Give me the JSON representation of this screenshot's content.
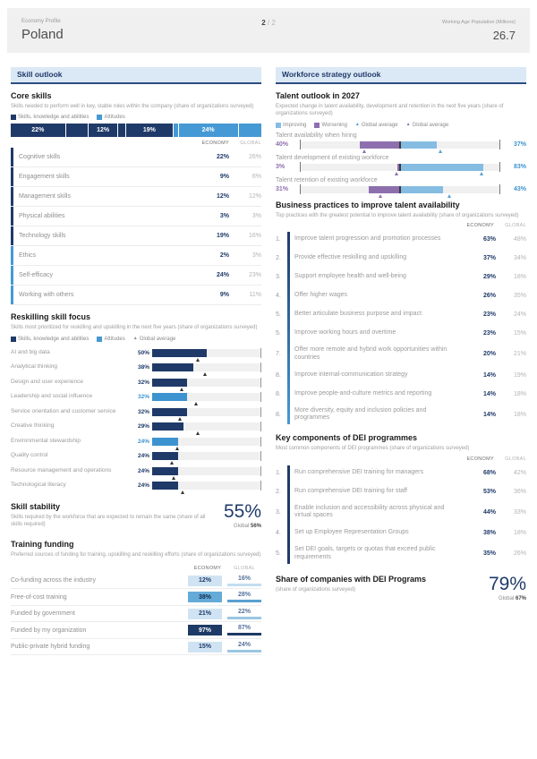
{
  "header": {
    "eyebrow": "Economy Profile",
    "title": "Poland",
    "page_current": "2",
    "page_separator": "/",
    "page_total": "2",
    "metric_label": "Working Age Population (Millions)",
    "metric_value": "26.7"
  },
  "colors": {
    "navy": "#1f3a68",
    "attitudes_blue": "#4599d4",
    "improving_blue": "#85bce2",
    "worsening_purple": "#8e6fae",
    "section_bg": "#dbe8f5"
  },
  "left": {
    "section_title": "Skill outlook",
    "core_skills": {
      "title": "Core skills",
      "subtitle": "Skills needed to perform well in key, stable roles within the company (share of organizations surveyed)",
      "legend": {
        "skills": "Skills, knowledge and abilities",
        "attitudes": "Attitudes"
      },
      "col_economy": "ECONOMY",
      "col_global": "GLOBAL",
      "stacked_bar": [
        {
          "value": 22,
          "label": "22%",
          "group": "skills"
        },
        {
          "value": 9,
          "label": "",
          "group": "skills"
        },
        {
          "value": 12,
          "label": "12%",
          "group": "skills"
        },
        {
          "value": 3,
          "label": "",
          "group": "skills"
        },
        {
          "value": 19,
          "label": "19%",
          "group": "skills"
        },
        {
          "value": 2,
          "label": "",
          "group": "attitudes"
        },
        {
          "value": 24,
          "label": "24%",
          "group": "attitudes"
        },
        {
          "value": 9,
          "label": "",
          "group": "attitudes"
        }
      ],
      "rows": [
        {
          "label": "Cognitive skills",
          "economy": "22%",
          "global": "26%",
          "group": "skills"
        },
        {
          "label": "Engagement skills",
          "economy": "9%",
          "global": "6%",
          "group": "skills"
        },
        {
          "label": "Management skills",
          "economy": "12%",
          "global": "12%",
          "group": "skills"
        },
        {
          "label": "Physical abilities",
          "economy": "3%",
          "global": "3%",
          "group": "skills"
        },
        {
          "label": "Technology skills",
          "economy": "19%",
          "global": "16%",
          "group": "skills"
        },
        {
          "label": "Ethics",
          "economy": "2%",
          "global": "3%",
          "group": "attitudes"
        },
        {
          "label": "Self-efficacy",
          "economy": "24%",
          "global": "23%",
          "group": "attitudes"
        },
        {
          "label": "Working with others",
          "economy": "9%",
          "global": "11%",
          "group": "attitudes"
        }
      ]
    },
    "reskilling": {
      "title": "Reskilling skill focus",
      "subtitle": "Skills most prioritized for reskilling and upskilling in the next five years (share of organizations surveyed)",
      "legend": {
        "skills": "Skills, knowledge and abilities",
        "attitudes": "Attitudes",
        "marker": "Global average"
      },
      "rows": [
        {
          "label": "AI and big data",
          "display": "50%",
          "value": 50,
          "group": "skills",
          "global_marker": 42
        },
        {
          "label": "Analytical thinking",
          "display": "38%",
          "value": 38,
          "group": "skills",
          "global_marker": 48
        },
        {
          "label": "Design and user experience",
          "display": "32%",
          "value": 32,
          "group": "skills",
          "global_marker": 27
        },
        {
          "label": "Leadership and social influence",
          "display": "32%",
          "value": 32,
          "group": "attitudes",
          "global_marker": 40
        },
        {
          "label": "Service orientation and customer service",
          "display": "32%",
          "value": 32,
          "group": "skills",
          "global_marker": 25
        },
        {
          "label": "Creative thinking",
          "display": "29%",
          "value": 29,
          "group": "skills",
          "global_marker": 42
        },
        {
          "label": "Environmental stewardship",
          "display": "24%",
          "value": 24,
          "group": "attitudes",
          "global_marker": 23
        },
        {
          "label": "Quality control",
          "display": "24%",
          "value": 24,
          "group": "skills",
          "global_marker": 18
        },
        {
          "label": "Resource management and operations",
          "display": "24%",
          "value": 24,
          "group": "skills",
          "global_marker": 20
        },
        {
          "label": "Technological literacy",
          "display": "24%",
          "value": 24,
          "group": "skills",
          "global_marker": 28
        }
      ]
    },
    "skill_stability": {
      "title": "Skill stability",
      "subtitle": "Skills required by the workforce that are expected to remain the same (share of all skills required)",
      "value": "55%",
      "global_label": "Global",
      "global_value": "56%"
    },
    "training_funding": {
      "title": "Training funding",
      "subtitle": "Preferred sources of funding for training, upskilling and reskilling efforts (share of organizations surveyed)",
      "col_economy": "ECONOMY",
      "col_global": "GLOBAL",
      "rows": [
        {
          "label": "Co-funding across the industry",
          "economy": "12%",
          "economy_tone": "light",
          "global": "16%",
          "global_tone": "light"
        },
        {
          "label": "Free-of-cost training",
          "economy": "38%",
          "economy_tone": "medium",
          "global": "28%",
          "global_tone": "medium"
        },
        {
          "label": "Funded by government",
          "economy": "21%",
          "economy_tone": "light",
          "global": "22%",
          "global_tone": "mlight"
        },
        {
          "label": "Funded by my organization",
          "economy": "97%",
          "economy_tone": "dark",
          "global": "87%",
          "global_tone": "dark"
        },
        {
          "label": "Public-private hybrid funding",
          "economy": "15%",
          "economy_tone": "light",
          "global": "24%",
          "global_tone": "mlight"
        }
      ]
    }
  },
  "right": {
    "section_title": "Workforce strategy outlook",
    "talent_outlook": {
      "title": "Talent outlook in 2027",
      "subtitle": "Expected change in talent availability, development and retention in the next five years (share of organizations surveyed)",
      "legend": {
        "improving": "Improving",
        "worsening": "Worsening",
        "marker_improving": "Global average",
        "marker_worsening": "Global average"
      },
      "rows": [
        {
          "label": "Talent availability when hiring",
          "worsening_display": "40%",
          "worsening": 40,
          "improving_display": "37%",
          "improving": 37,
          "worsening_global": 36,
          "improving_global": 40
        },
        {
          "label": "Talent development of existing workforce",
          "worsening_display": "3%",
          "worsening": 3,
          "improving_display": "83%",
          "improving": 83,
          "worsening_global": 4,
          "improving_global": 81
        },
        {
          "label": "Talent retention of existing workforce",
          "worsening_display": "31%",
          "worsening": 31,
          "improving_display": "43%",
          "improving": 43,
          "worsening_global": 20,
          "improving_global": 49
        }
      ]
    },
    "business_practices": {
      "title": "Business practices to improve talent availability",
      "subtitle": "Top practices with the greatest potential to improve talent availability (share of organizations surveyed)",
      "col_economy": "ECONOMY",
      "col_global": "GLOBAL",
      "rows": [
        {
          "rank": "1.",
          "label": "Improve talent progression and promotion processes",
          "economy": "63%",
          "global": "48%"
        },
        {
          "rank": "2.",
          "label": "Provide effective reskilling and upskilling",
          "economy": "37%",
          "global": "34%"
        },
        {
          "rank": "3.",
          "label": "Support employee health and well-being",
          "economy": "29%",
          "global": "18%"
        },
        {
          "rank": "4.",
          "label": "Offer higher wages",
          "economy": "26%",
          "global": "35%"
        },
        {
          "rank": "5.",
          "label": "Better articulate business purpose and impact",
          "economy": "23%",
          "global": "24%"
        },
        {
          "rank": "5.",
          "label": "Improve working hours and overtime",
          "economy": "23%",
          "global": "15%"
        },
        {
          "rank": "7.",
          "label": "Offer more remote and hybrid work opportunities within countries",
          "economy": "20%",
          "global": "21%"
        },
        {
          "rank": "8.",
          "label": "Improve internal-communication strategy",
          "economy": "14%",
          "global": "19%"
        },
        {
          "rank": "8.",
          "label": "Improve people-and-culture metrics and reporting",
          "economy": "14%",
          "global": "18%"
        },
        {
          "rank": "8.",
          "label": "More diversity, equity and inclusion policies and programmes",
          "economy": "14%",
          "global": "18%"
        }
      ]
    },
    "dei_components": {
      "title": "Key components of DEI programmes",
      "subtitle": "Most common components of DEI programmes (share of organizations surveyed)",
      "col_economy": "ECONOMY",
      "col_global": "GLOBAL",
      "rows": [
        {
          "rank": "1.",
          "label": "Run comprehensive DEI training for managers",
          "economy": "68%",
          "global": "42%"
        },
        {
          "rank": "2.",
          "label": "Run comprehensive DEI training for staff",
          "economy": "53%",
          "global": "36%"
        },
        {
          "rank": "3.",
          "label": "Enable inclusion and accessibility across physical and virtual spaces",
          "economy": "44%",
          "global": "33%"
        },
        {
          "rank": "4.",
          "label": "Set up Employee Representation Groups",
          "economy": "38%",
          "global": "18%"
        },
        {
          "rank": "5.",
          "label": "Set DEI goals, targets or quotas that exceed public requirements",
          "economy": "35%",
          "global": "26%"
        }
      ]
    },
    "dei_share": {
      "title": "Share of companies with DEI Programs",
      "subtitle": "(share of organizations surveyed)",
      "value": "79%",
      "global_label": "Global",
      "global_value": "67%"
    }
  }
}
